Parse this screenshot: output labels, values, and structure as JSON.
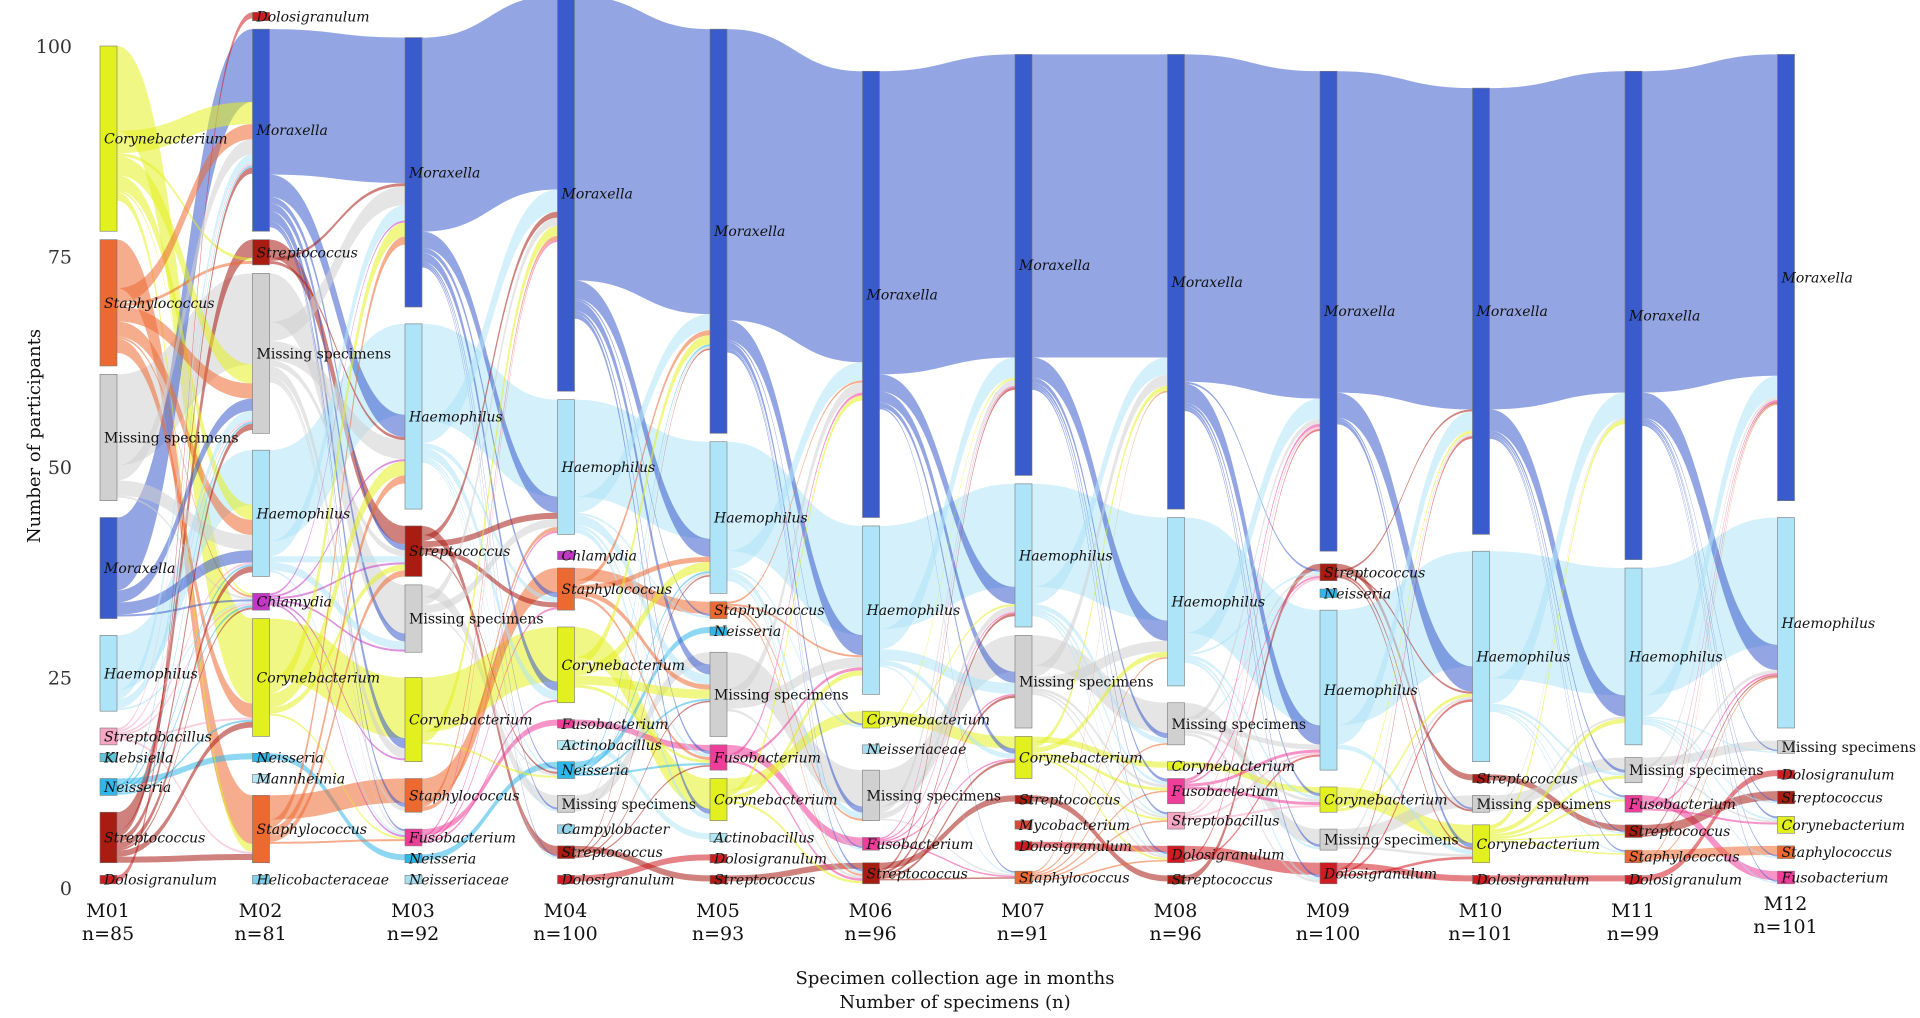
{
  "chart_data": {
    "type": "sankey",
    "ylabel": "Number of participants",
    "xlabel": "Specimen collection age in months",
    "xlabel2": "Number of specimens (n)",
    "ylim": [
      0,
      100
    ],
    "yticks": [
      0,
      25,
      50,
      75,
      100
    ],
    "colors": {
      "Moraxella": "#3a5bcc",
      "Haemophilus": "#aee4f8",
      "Missing specimens": "#d0d0d0",
      "Corynebacterium": "#e3f01f",
      "Staphylococcus": "#ec6a32",
      "Streptococcus": "#a81c12",
      "Dolosigranulum": "#cf1c22",
      "Streptobacillus": "#f5a6c2",
      "Klebsiella": "#61c5d6",
      "Neisseria": "#2fb6ea",
      "Chlamydia": "#c436c6",
      "Mannheimia": "#b7e6f3",
      "Helicobacteraceae": "#7fd0ea",
      "Fusobacterium": "#ef3d9a",
      "Neisseriaceae": "#a8dff0",
      "Actinobacillus": "#b2e8f4",
      "Campylobacter": "#92d5ea",
      "Mycobacterium": "#d94a3a"
    },
    "columns": [
      {
        "label": "M01",
        "n": "n=85",
        "nodes": [
          {
            "name": "Corynebacterium",
            "top": 100,
            "bottom": 78
          },
          {
            "name": "Staphylococcus",
            "top": 77,
            "bottom": 62
          },
          {
            "name": "Missing specimens",
            "top": 61,
            "bottom": 46
          },
          {
            "name": "Moraxella",
            "top": 44,
            "bottom": 32
          },
          {
            "name": "Haemophilus",
            "top": 30,
            "bottom": 21
          },
          {
            "name": "Streptobacillus",
            "top": 19,
            "bottom": 17
          },
          {
            "name": "Klebsiella",
            "top": 16,
            "bottom": 15
          },
          {
            "name": "Neisseria",
            "top": 13,
            "bottom": 11
          },
          {
            "name": "Streptococcus",
            "top": 9,
            "bottom": 3
          },
          {
            "name": "Dolosigranulum",
            "top": 1.5,
            "bottom": 0.5
          }
        ]
      },
      {
        "label": "M02",
        "n": "n=81",
        "nodes": [
          {
            "name": "Dolosigranulum",
            "top": 104,
            "bottom": 103
          },
          {
            "name": "Moraxella",
            "top": 102,
            "bottom": 78
          },
          {
            "name": "Streptococcus",
            "top": 77,
            "bottom": 74
          },
          {
            "name": "Missing specimens",
            "top": 73,
            "bottom": 54
          },
          {
            "name": "Haemophilus",
            "top": 52,
            "bottom": 37
          },
          {
            "name": "Chlamydia",
            "top": 35,
            "bottom": 33
          },
          {
            "name": "Corynebacterium",
            "top": 32,
            "bottom": 18
          },
          {
            "name": "Neisseria",
            "top": 16,
            "bottom": 15
          },
          {
            "name": "Mannheimia",
            "top": 13.5,
            "bottom": 12.5
          },
          {
            "name": "Staphylococcus",
            "top": 11,
            "bottom": 3
          },
          {
            "name": "Helicobacteraceae",
            "top": 1.5,
            "bottom": 0.5
          }
        ]
      },
      {
        "label": "M03",
        "n": "n=92",
        "nodes": [
          {
            "name": "Moraxella",
            "top": 101,
            "bottom": 69
          },
          {
            "name": "Haemophilus",
            "top": 67,
            "bottom": 45
          },
          {
            "name": "Streptococcus",
            "top": 43,
            "bottom": 37
          },
          {
            "name": "Missing specimens",
            "top": 36,
            "bottom": 28
          },
          {
            "name": "Corynebacterium",
            "top": 25,
            "bottom": 15
          },
          {
            "name": "Staphylococcus",
            "top": 13,
            "bottom": 9
          },
          {
            "name": "Fusobacterium",
            "top": 7,
            "bottom": 5
          },
          {
            "name": "Neisseria",
            "top": 4,
            "bottom": 3
          },
          {
            "name": "Neisseriaceae",
            "top": 1.5,
            "bottom": 0.5
          }
        ]
      },
      {
        "label": "M04",
        "n": "n=100",
        "nodes": [
          {
            "name": "Moraxella",
            "top": 106,
            "bottom": 59
          },
          {
            "name": "Haemophilus",
            "top": 58,
            "bottom": 42
          },
          {
            "name": "Chlamydia",
            "top": 40,
            "bottom": 39
          },
          {
            "name": "Staphylococcus",
            "top": 38,
            "bottom": 33
          },
          {
            "name": "Corynebacterium",
            "top": 31,
            "bottom": 22
          },
          {
            "name": "Fusobacterium",
            "top": 20,
            "bottom": 19
          },
          {
            "name": "Actinobacillus",
            "top": 17.5,
            "bottom": 16.5
          },
          {
            "name": "Neisseria",
            "top": 15,
            "bottom": 13
          },
          {
            "name": "Missing specimens",
            "top": 11,
            "bottom": 9
          },
          {
            "name": "Campylobacter",
            "top": 7.5,
            "bottom": 6.5
          },
          {
            "name": "Streptococcus",
            "top": 5,
            "bottom": 3.5
          },
          {
            "name": "Dolosigranulum",
            "top": 1.5,
            "bottom": 0.5
          }
        ]
      },
      {
        "label": "M05",
        "n": "n=93",
        "nodes": [
          {
            "name": "Moraxella",
            "top": 102,
            "bottom": 54
          },
          {
            "name": "Haemophilus",
            "top": 53,
            "bottom": 35
          },
          {
            "name": "Staphylococcus",
            "top": 34,
            "bottom": 32
          },
          {
            "name": "Neisseria",
            "top": 31,
            "bottom": 30
          },
          {
            "name": "Missing specimens",
            "top": 28,
            "bottom": 18
          },
          {
            "name": "Fusobacterium",
            "top": 17,
            "bottom": 14
          },
          {
            "name": "Corynebacterium",
            "top": 13,
            "bottom": 8
          },
          {
            "name": "Actinobacillus",
            "top": 6.5,
            "bottom": 5.5
          },
          {
            "name": "Dolosigranulum",
            "top": 4,
            "bottom": 3
          },
          {
            "name": "Streptococcus",
            "top": 1.5,
            "bottom": 0.5
          }
        ]
      },
      {
        "label": "M06",
        "n": "n=96",
        "nodes": [
          {
            "name": "Moraxella",
            "top": 97,
            "bottom": 44
          },
          {
            "name": "Haemophilus",
            "top": 43,
            "bottom": 23
          },
          {
            "name": "Corynebacterium",
            "top": 21,
            "bottom": 19
          },
          {
            "name": "Neisseriaceae",
            "top": 17,
            "bottom": 16
          },
          {
            "name": "Missing specimens",
            "top": 14,
            "bottom": 8
          },
          {
            "name": "Fusobacterium",
            "top": 6,
            "bottom": 4.5
          },
          {
            "name": "Streptococcus",
            "top": 3,
            "bottom": 0.5
          }
        ]
      },
      {
        "label": "M07",
        "n": "n=91",
        "nodes": [
          {
            "name": "Moraxella",
            "top": 99,
            "bottom": 49
          },
          {
            "name": "Haemophilus",
            "top": 48,
            "bottom": 31
          },
          {
            "name": "Missing specimens",
            "top": 30,
            "bottom": 19
          },
          {
            "name": "Corynebacterium",
            "top": 18,
            "bottom": 13
          },
          {
            "name": "Streptococcus",
            "top": 11,
            "bottom": 10
          },
          {
            "name": "Mycobacterium",
            "top": 8,
            "bottom": 7
          },
          {
            "name": "Dolosigranulum",
            "top": 5.5,
            "bottom": 4.5
          },
          {
            "name": "Staphylococcus",
            "top": 2,
            "bottom": 0.5
          }
        ]
      },
      {
        "label": "M08",
        "n": "n=96",
        "nodes": [
          {
            "name": "Moraxella",
            "top": 99,
            "bottom": 45
          },
          {
            "name": "Haemophilus",
            "top": 44,
            "bottom": 24
          },
          {
            "name": "Missing specimens",
            "top": 22,
            "bottom": 17
          },
          {
            "name": "Corynebacterium",
            "top": 15,
            "bottom": 14
          },
          {
            "name": "Fusobacterium",
            "top": 13,
            "bottom": 10
          },
          {
            "name": "Streptobacillus",
            "top": 9,
            "bottom": 7
          },
          {
            "name": "Dolosigranulum",
            "top": 5,
            "bottom": 3
          },
          {
            "name": "Streptococcus",
            "top": 1.5,
            "bottom": 0.5
          }
        ]
      },
      {
        "label": "M09",
        "n": "n=100",
        "nodes": [
          {
            "name": "Moraxella",
            "top": 97,
            "bottom": 40
          },
          {
            "name": "Streptococcus",
            "top": 38.5,
            "bottom": 36.5
          },
          {
            "name": "Neisseria",
            "top": 35.5,
            "bottom": 34.5
          },
          {
            "name": "Haemophilus",
            "top": 33,
            "bottom": 14
          },
          {
            "name": "Corynebacterium",
            "top": 12,
            "bottom": 9
          },
          {
            "name": "Missing specimens",
            "top": 7,
            "bottom": 4.5
          },
          {
            "name": "Dolosigranulum",
            "top": 3,
            "bottom": 0.5
          }
        ]
      },
      {
        "label": "M10",
        "n": "n=101",
        "nodes": [
          {
            "name": "Moraxella",
            "top": 95,
            "bottom": 42
          },
          {
            "name": "Haemophilus",
            "top": 40,
            "bottom": 15
          },
          {
            "name": "Streptococcus",
            "top": 13.5,
            "bottom": 12.5
          },
          {
            "name": "Missing specimens",
            "top": 11,
            "bottom": 9
          },
          {
            "name": "Corynebacterium",
            "top": 7.5,
            "bottom": 3
          },
          {
            "name": "Dolosigranulum",
            "top": 1.5,
            "bottom": 0.5
          }
        ]
      },
      {
        "label": "M11",
        "n": "n=99",
        "nodes": [
          {
            "name": "Moraxella",
            "top": 97,
            "bottom": 39
          },
          {
            "name": "Haemophilus",
            "top": 38,
            "bottom": 17
          },
          {
            "name": "Missing specimens",
            "top": 15.5,
            "bottom": 12.5
          },
          {
            "name": "Fusobacterium",
            "top": 11,
            "bottom": 9
          },
          {
            "name": "Streptococcus",
            "top": 7.5,
            "bottom": 6
          },
          {
            "name": "Staphylococcus",
            "top": 4.5,
            "bottom": 3
          },
          {
            "name": "Dolosigranulum",
            "top": 1.5,
            "bottom": 0.5
          }
        ]
      },
      {
        "label": "M12",
        "n": "n=101",
        "nodes": [
          {
            "name": "Moraxella",
            "top": 99,
            "bottom": 46
          },
          {
            "name": "Haemophilus",
            "top": 44,
            "bottom": 19
          },
          {
            "name": "Missing specimens",
            "top": 17.5,
            "bottom": 16
          },
          {
            "name": "Dolosigranulum",
            "top": 14,
            "bottom": 13
          },
          {
            "name": "Streptococcus",
            "top": 11.5,
            "bottom": 10
          },
          {
            "name": "Corynebacterium",
            "top": 8.5,
            "bottom": 6.5
          },
          {
            "name": "Staphylococcus",
            "top": 5,
            "bottom": 3.5
          },
          {
            "name": "Fusobacterium",
            "top": 2,
            "bottom": 0.5
          }
        ]
      }
    ]
  }
}
